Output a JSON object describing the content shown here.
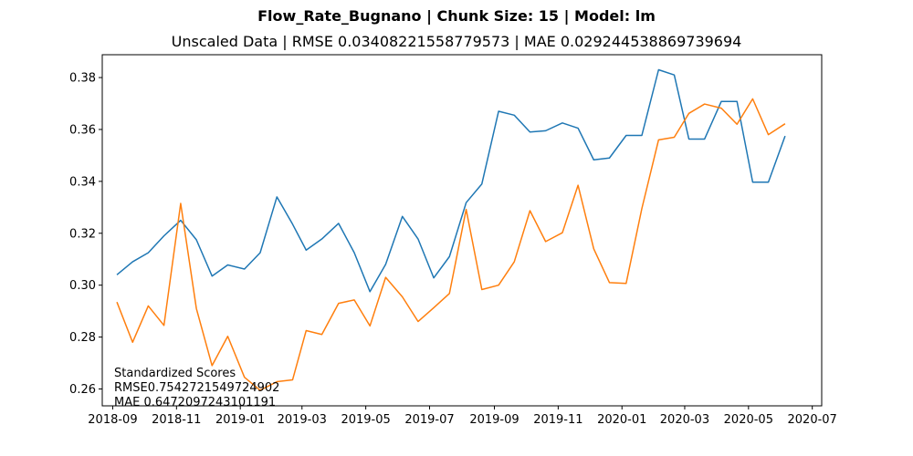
{
  "chart_data": {
    "type": "line",
    "title": "Flow_Rate_Bugnano | Chunk Size: 15 | Model: lm",
    "subtitle": "Unscaled Data | RMSE 0.03408221558779573 | MAE 0.029244538869739694",
    "xlabel": "",
    "ylabel": "",
    "xlim": [
      "2018-08-22",
      "2020-07-10"
    ],
    "ylim": [
      0.2535,
      0.3888
    ],
    "grid": false,
    "x_ticks": [
      "2018-09",
      "2018-11",
      "2019-01",
      "2019-03",
      "2019-05",
      "2019-07",
      "2019-09",
      "2019-11",
      "2020-01",
      "2020-03",
      "2020-05",
      "2020-07"
    ],
    "y_ticks": [
      0.26,
      0.28,
      0.3,
      0.32,
      0.34,
      0.36,
      0.38
    ],
    "y_tick_labels": [
      "0.26",
      "0.28",
      "0.30",
      "0.32",
      "0.34",
      "0.36",
      "0.38"
    ],
    "x": [
      "2018-09-05",
      "2018-09-20",
      "2018-10-05",
      "2018-10-20",
      "2018-11-05",
      "2018-11-20",
      "2018-12-05",
      "2018-12-20",
      "2019-01-05",
      "2019-01-20",
      "2019-02-05",
      "2019-02-20",
      "2019-03-05",
      "2019-03-20",
      "2019-04-05",
      "2019-04-20",
      "2019-05-05",
      "2019-05-20",
      "2019-06-05",
      "2019-06-20",
      "2019-07-05",
      "2019-07-20",
      "2019-08-05",
      "2019-08-20",
      "2019-09-05",
      "2019-09-20",
      "2019-10-05",
      "2019-10-20",
      "2019-11-05",
      "2019-11-20",
      "2019-12-05",
      "2019-12-20",
      "2020-01-05",
      "2020-01-20",
      "2020-02-05",
      "2020-02-20",
      "2020-03-05",
      "2020-03-20",
      "2020-04-05",
      "2020-04-20",
      "2020-05-05",
      "2020-05-20",
      "2020-06-05"
    ],
    "series": [
      {
        "color": "#1f77b4",
        "values": [
          0.304,
          0.309,
          0.3125,
          0.319,
          0.325,
          0.3175,
          0.3035,
          0.3078,
          0.3062,
          0.3125,
          0.334,
          0.3235,
          0.3135,
          0.3178,
          0.3238,
          0.3125,
          0.2975,
          0.308,
          0.3265,
          0.3178,
          0.3028,
          0.311,
          0.3318,
          0.339,
          0.367,
          0.3655,
          0.359,
          0.3595,
          0.3625,
          0.3605,
          0.3483,
          0.349,
          0.3577,
          0.3577,
          0.383,
          0.381,
          0.3563,
          0.3563,
          0.3708,
          0.3708,
          0.3397,
          0.3397,
          0.3575
        ]
      },
      {
        "color": "#ff7f0e",
        "values": [
          0.2935,
          0.278,
          0.292,
          0.2845,
          0.3315,
          0.291,
          0.269,
          0.2803,
          0.2645,
          0.2595,
          0.2628,
          0.2635,
          0.2825,
          0.281,
          0.293,
          0.2943,
          0.2843,
          0.303,
          0.2955,
          0.286,
          0.2913,
          0.2968,
          0.3292,
          0.2983,
          0.3,
          0.309,
          0.3287,
          0.3168,
          0.3202,
          0.3385,
          0.314,
          0.301,
          0.3007,
          0.3295,
          0.356,
          0.357,
          0.3662,
          0.3698,
          0.3682,
          0.362,
          0.3718,
          0.358,
          0.3622
        ]
      }
    ],
    "annotation": {
      "heading": "Standardized Scores",
      "rmse": "RMSE0.7542721549724902",
      "mae": "MAE 0.6472097243101191"
    }
  }
}
